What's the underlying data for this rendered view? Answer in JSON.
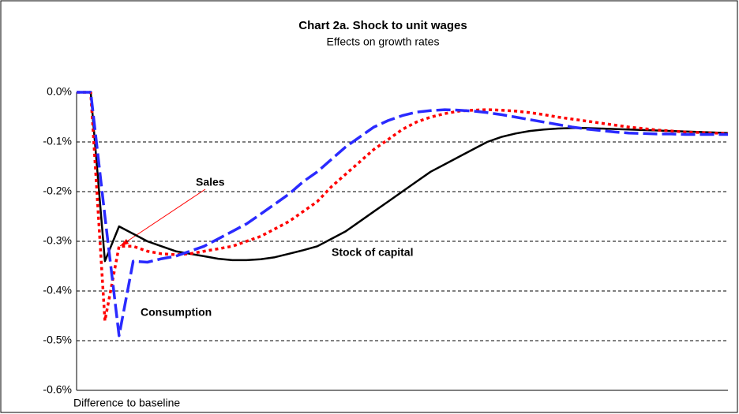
{
  "chart_data": {
    "type": "line",
    "title": "Chart 2a. Shock to unit wages",
    "subtitle": "Effects on growth rates",
    "footnote": "Difference to baseline",
    "categories": [
      null,
      null,
      null,
      null,
      null,
      null,
      null,
      null,
      null,
      null,
      null,
      null,
      null,
      null,
      null,
      null,
      null,
      null,
      null,
      null,
      null,
      null,
      null,
      null,
      null,
      null,
      null,
      null,
      null,
      null,
      null,
      null,
      null,
      null,
      null,
      null,
      null,
      null,
      null,
      null,
      null,
      null,
      null,
      null,
      null,
      null,
      null
    ],
    "ylim": [
      -0.6,
      0
    ],
    "yticks": [
      {
        "value": 0,
        "label": "0.0%"
      },
      {
        "value": -0.1,
        "label": "-0.1%"
      },
      {
        "value": -0.2,
        "label": "-0.2%"
      },
      {
        "value": -0.3,
        "label": "-0.3%"
      },
      {
        "value": -0.4,
        "label": "-0.4%"
      },
      {
        "value": -0.5,
        "label": "-0.5%"
      },
      {
        "value": -0.6,
        "label": "-0.6%"
      }
    ],
    "grid": true,
    "series": [
      {
        "name": "Stock of capital",
        "color": "#000000",
        "dash": "solid",
        "values": [
          0,
          0,
          -0.34,
          -0.27,
          -0.285,
          -0.3,
          -0.31,
          -0.32,
          -0.325,
          -0.33,
          -0.335,
          -0.338,
          -0.338,
          -0.336,
          -0.332,
          -0.325,
          -0.318,
          -0.31,
          -0.295,
          -0.28,
          -0.26,
          -0.24,
          -0.22,
          -0.2,
          -0.18,
          -0.16,
          -0.145,
          -0.13,
          -0.115,
          -0.1,
          -0.09,
          -0.083,
          -0.078,
          -0.075,
          -0.073,
          -0.072,
          -0.072,
          -0.073,
          -0.074,
          -0.075,
          -0.076,
          -0.077,
          -0.078,
          -0.079,
          -0.08,
          -0.081,
          -0.082
        ]
      },
      {
        "name": "Sales",
        "color": "#ff0000",
        "dash": "dotted",
        "values": [
          0,
          0,
          -0.46,
          -0.31,
          -0.31,
          -0.32,
          -0.325,
          -0.327,
          -0.325,
          -0.32,
          -0.315,
          -0.31,
          -0.3,
          -0.29,
          -0.275,
          -0.26,
          -0.24,
          -0.22,
          -0.19,
          -0.165,
          -0.14,
          -0.115,
          -0.095,
          -0.075,
          -0.06,
          -0.05,
          -0.043,
          -0.038,
          -0.036,
          -0.035,
          -0.036,
          -0.038,
          -0.041,
          -0.045,
          -0.05,
          -0.054,
          -0.058,
          -0.062,
          -0.066,
          -0.07,
          -0.073,
          -0.076,
          -0.078,
          -0.08,
          -0.081,
          -0.082,
          -0.083
        ]
      },
      {
        "name": "Consumption",
        "color": "#2a2aff",
        "dash": "dashed",
        "values": [
          0,
          0,
          -0.25,
          -0.49,
          -0.34,
          -0.342,
          -0.335,
          -0.33,
          -0.32,
          -0.31,
          -0.295,
          -0.28,
          -0.265,
          -0.245,
          -0.225,
          -0.205,
          -0.18,
          -0.16,
          -0.135,
          -0.11,
          -0.09,
          -0.07,
          -0.057,
          -0.047,
          -0.04,
          -0.037,
          -0.035,
          -0.036,
          -0.038,
          -0.041,
          -0.045,
          -0.05,
          -0.055,
          -0.06,
          -0.065,
          -0.07,
          -0.074,
          -0.077,
          -0.08,
          -0.082,
          -0.083,
          -0.084,
          -0.084,
          -0.085,
          -0.085,
          -0.085,
          -0.085
        ]
      }
    ]
  }
}
